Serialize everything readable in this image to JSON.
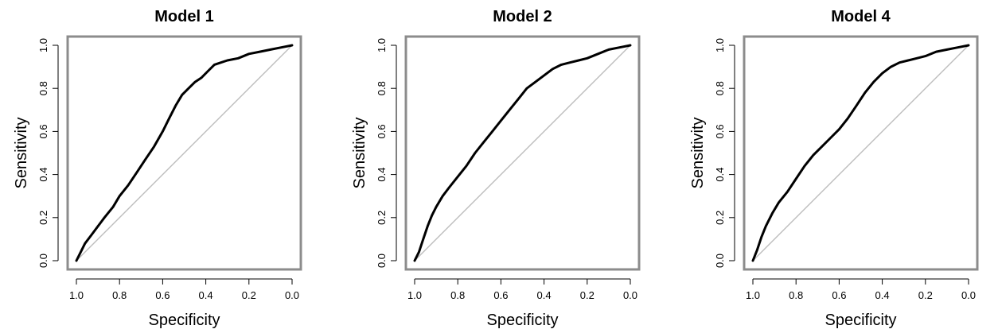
{
  "chart_data": [
    {
      "type": "line",
      "title": "Model 1",
      "xlabel": "Specificity",
      "ylabel": "Sensitivity",
      "xlim": [
        1.0,
        0.0
      ],
      "ylim": [
        0.0,
        1.0
      ],
      "x_ticks": [
        "1.0",
        "0.8",
        "0.6",
        "0.4",
        "0.2",
        "0.0"
      ],
      "y_ticks": [
        "0.0",
        "0.2",
        "0.4",
        "0.6",
        "0.8",
        "1.0"
      ],
      "grid": false,
      "reference_line": {
        "from": [
          1.0,
          0.0
        ],
        "to": [
          0.0,
          1.0
        ],
        "color": "#bdbdbd"
      },
      "series": [
        {
          "color": "#000000",
          "x": [
            1.0,
            0.98,
            0.96,
            0.93,
            0.9,
            0.87,
            0.83,
            0.8,
            0.76,
            0.72,
            0.68,
            0.64,
            0.6,
            0.57,
            0.54,
            0.51,
            0.48,
            0.45,
            0.42,
            0.39,
            0.36,
            0.33,
            0.3,
            0.25,
            0.2,
            0.15,
            0.1,
            0.05,
            0.0
          ],
          "y": [
            0.0,
            0.04,
            0.08,
            0.12,
            0.16,
            0.2,
            0.25,
            0.3,
            0.35,
            0.41,
            0.47,
            0.53,
            0.6,
            0.66,
            0.72,
            0.77,
            0.8,
            0.83,
            0.85,
            0.88,
            0.91,
            0.92,
            0.93,
            0.94,
            0.96,
            0.97,
            0.98,
            0.99,
            1.0
          ]
        }
      ]
    },
    {
      "type": "line",
      "title": "Model 2",
      "xlabel": "Specificity",
      "ylabel": "Sensitivity",
      "xlim": [
        1.0,
        0.0
      ],
      "ylim": [
        0.0,
        1.0
      ],
      "x_ticks": [
        "1.0",
        "0.8",
        "0.6",
        "0.4",
        "0.2",
        "0.0"
      ],
      "y_ticks": [
        "0.0",
        "0.2",
        "0.4",
        "0.6",
        "0.8",
        "1.0"
      ],
      "grid": false,
      "reference_line": {
        "from": [
          1.0,
          0.0
        ],
        "to": [
          0.0,
          1.0
        ],
        "color": "#bdbdbd"
      },
      "series": [
        {
          "color": "#000000",
          "x": [
            1.0,
            0.98,
            0.96,
            0.94,
            0.92,
            0.9,
            0.87,
            0.84,
            0.8,
            0.76,
            0.72,
            0.68,
            0.64,
            0.6,
            0.56,
            0.52,
            0.48,
            0.44,
            0.4,
            0.36,
            0.32,
            0.28,
            0.24,
            0.2,
            0.15,
            0.1,
            0.05,
            0.0
          ],
          "y": [
            0.0,
            0.04,
            0.1,
            0.16,
            0.21,
            0.25,
            0.3,
            0.34,
            0.39,
            0.44,
            0.5,
            0.55,
            0.6,
            0.65,
            0.7,
            0.75,
            0.8,
            0.83,
            0.86,
            0.89,
            0.91,
            0.92,
            0.93,
            0.94,
            0.96,
            0.98,
            0.99,
            1.0
          ]
        }
      ]
    },
    {
      "type": "line",
      "title": "Model 4",
      "xlabel": "Specificity",
      "ylabel": "Sensitivity",
      "xlim": [
        1.0,
        0.0
      ],
      "ylim": [
        0.0,
        1.0
      ],
      "x_ticks": [
        "1.0",
        "0.8",
        "0.6",
        "0.4",
        "0.2",
        "0.0"
      ],
      "y_ticks": [
        "0.0",
        "0.2",
        "0.4",
        "0.6",
        "0.8",
        "1.0"
      ],
      "grid": false,
      "reference_line": {
        "from": [
          1.0,
          0.0
        ],
        "to": [
          0.0,
          1.0
        ],
        "color": "#bdbdbd"
      },
      "series": [
        {
          "color": "#000000",
          "x": [
            1.0,
            0.98,
            0.96,
            0.94,
            0.91,
            0.88,
            0.84,
            0.8,
            0.76,
            0.72,
            0.68,
            0.64,
            0.6,
            0.56,
            0.52,
            0.48,
            0.44,
            0.4,
            0.36,
            0.32,
            0.28,
            0.24,
            0.2,
            0.15,
            0.1,
            0.05,
            0.0
          ],
          "y": [
            0.0,
            0.05,
            0.11,
            0.16,
            0.22,
            0.27,
            0.32,
            0.38,
            0.44,
            0.49,
            0.53,
            0.57,
            0.61,
            0.66,
            0.72,
            0.78,
            0.83,
            0.87,
            0.9,
            0.92,
            0.93,
            0.94,
            0.95,
            0.97,
            0.98,
            0.99,
            1.0
          ]
        }
      ]
    }
  ]
}
